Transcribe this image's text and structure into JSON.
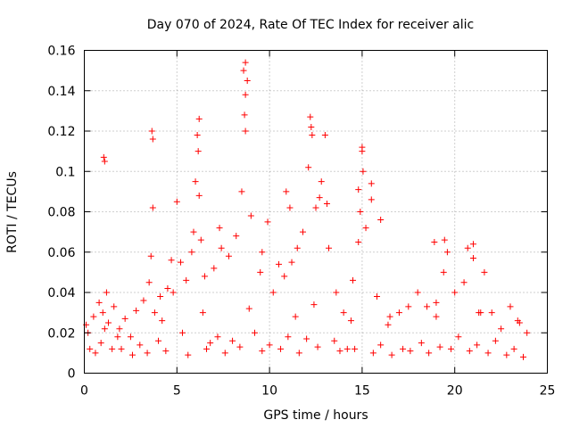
{
  "chart_data": {
    "type": "scatter",
    "title": "Day 070 of 2024, Rate Of TEC Index for receiver alic",
    "xlabel": "GPS time / hours",
    "ylabel": "ROTI / TECUs",
    "xlim": [
      0,
      25
    ],
    "ylim": [
      0,
      0.16
    ],
    "xticks": [
      0,
      5,
      10,
      15,
      20,
      25
    ],
    "xtick_labels": [
      "0",
      "5",
      "10",
      "15",
      "20",
      "25"
    ],
    "yticks": [
      0,
      0.02,
      0.04,
      0.06,
      0.08,
      0.1,
      0.12,
      0.14,
      0.16
    ],
    "ytick_labels": [
      "0",
      "0.02",
      "0.04",
      "0.06",
      "0.08",
      "0.1",
      "0.12",
      "0.14",
      "0.16"
    ],
    "grid": true,
    "marker": "plus",
    "color": "#ff0000",
    "x": [
      0.2,
      0.5,
      0.8,
      1.0,
      1.1,
      1.2,
      1.3,
      1.6,
      1.8,
      2.2,
      2.8,
      3.2,
      3.5,
      3.6,
      3.7,
      3.8,
      4.1,
      4.5,
      4.8,
      5.0,
      5.2,
      5.5,
      5.8,
      6.0,
      6.1,
      6.2,
      6.3,
      6.5,
      7.0,
      7.4,
      7.8,
      8.2,
      8.5,
      8.6,
      8.7,
      8.8,
      9.0,
      9.5,
      10.2,
      10.8,
      11.2,
      11.5,
      11.8,
      12.1,
      12.3,
      12.5,
      12.8,
      13.0,
      13.2,
      13.6,
      14.0,
      14.5,
      14.8,
      14.9,
      15.0,
      15.2,
      15.5,
      15.8,
      16.5,
      17.0,
      17.5,
      18.0,
      18.5,
      19.0,
      19.4,
      19.6,
      20.0,
      20.5,
      21.0,
      21.3,
      21.6,
      22.0,
      22.5,
      23.0,
      23.5,
      23.9,
      0.3,
      0.9,
      2.0,
      2.5,
      3.0,
      4.0,
      5.3,
      6.8,
      7.2,
      8.0,
      9.2,
      10.0,
      11.0,
      12.0,
      13.5,
      14.2,
      16.0,
      17.2,
      18.2,
      19.2,
      20.2,
      21.2,
      22.2,
      23.2,
      0.6,
      1.5,
      2.6,
      3.4,
      4.4,
      5.6,
      6.6,
      7.6,
      8.4,
      9.6,
      10.6,
      11.6,
      12.6,
      13.8,
      14.6,
      15.6,
      16.6,
      17.6,
      18.6,
      19.8,
      20.8,
      21.8,
      22.8,
      23.7,
      0.1,
      1.9,
      4.2,
      6.4,
      8.9,
      11.4,
      12.4,
      14.4,
      16.4,
      19.0,
      21.4,
      23.4,
      8.7,
      8.7,
      8.65,
      12.2,
      12.25,
      6.2,
      6.15,
      15.0,
      15.05,
      3.65,
      3.7,
      1.05,
      1.1,
      5.9,
      9.9,
      10.5,
      10.9,
      12.7,
      13.1,
      15.5,
      16.0,
      19.45,
      21.0,
      20.7,
      14.8,
      18.9,
      11.1,
      7.3,
      9.6,
      4.7
    ],
    "y": [
      0.02,
      0.028,
      0.035,
      0.03,
      0.022,
      0.04,
      0.025,
      0.033,
      0.018,
      0.027,
      0.031,
      0.036,
      0.045,
      0.058,
      0.082,
      0.03,
      0.038,
      0.042,
      0.04,
      0.085,
      0.055,
      0.046,
      0.06,
      0.095,
      0.118,
      0.088,
      0.066,
      0.048,
      0.052,
      0.062,
      0.058,
      0.068,
      0.09,
      0.15,
      0.12,
      0.145,
      0.078,
      0.05,
      0.04,
      0.048,
      0.055,
      0.062,
      0.07,
      0.102,
      0.118,
      0.082,
      0.095,
      0.118,
      0.062,
      0.04,
      0.03,
      0.046,
      0.065,
      0.08,
      0.11,
      0.072,
      0.086,
      0.038,
      0.028,
      0.03,
      0.033,
      0.04,
      0.033,
      0.035,
      0.05,
      0.06,
      0.04,
      0.045,
      0.064,
      0.03,
      0.05,
      0.03,
      0.022,
      0.033,
      0.025,
      0.02,
      0.012,
      0.015,
      0.012,
      0.018,
      0.014,
      0.016,
      0.02,
      0.015,
      0.018,
      0.016,
      0.02,
      0.014,
      0.018,
      0.017,
      0.016,
      0.012,
      0.014,
      0.012,
      0.015,
      0.013,
      0.018,
      0.014,
      0.016,
      0.012,
      0.01,
      0.012,
      0.009,
      0.01,
      0.011,
      0.009,
      0.012,
      0.01,
      0.013,
      0.011,
      0.012,
      0.01,
      0.013,
      0.011,
      0.012,
      0.01,
      0.009,
      0.011,
      0.01,
      0.012,
      0.011,
      0.01,
      0.009,
      0.008,
      0.024,
      0.022,
      0.026,
      0.03,
      0.032,
      0.028,
      0.034,
      0.026,
      0.024,
      0.028,
      0.03,
      0.026,
      0.154,
      0.138,
      0.128,
      0.127,
      0.122,
      0.126,
      0.11,
      0.112,
      0.1,
      0.12,
      0.116,
      0.107,
      0.105,
      0.07,
      0.075,
      0.054,
      0.09,
      0.087,
      0.084,
      0.094,
      0.076,
      0.066,
      0.057,
      0.062,
      0.091,
      0.065,
      0.082,
      0.072,
      0.06,
      0.056
    ]
  }
}
